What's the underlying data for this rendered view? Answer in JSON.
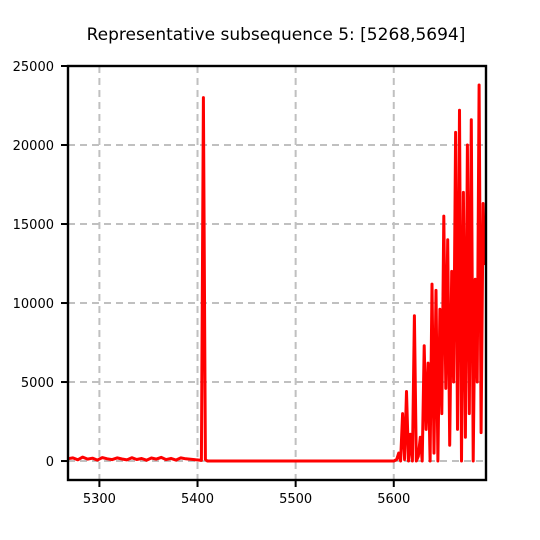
{
  "chart_data": {
    "type": "line",
    "title": "Representative subsequence 5: [5268,5694]",
    "xlabel": "",
    "ylabel": "",
    "xlim": [
      5268,
      5694
    ],
    "ylim": [
      -1200,
      25000
    ],
    "x_ticks": [
      5300,
      5400,
      5500,
      5600
    ],
    "x_tick_labels": [
      "5300",
      "5400",
      "5500",
      "5600"
    ],
    "y_ticks": [
      0,
      5000,
      10000,
      15000,
      20000,
      25000
    ],
    "y_tick_labels": [
      "0",
      "5000",
      "10000",
      "15000",
      "20000",
      "25000"
    ],
    "grid": true,
    "legend": "none",
    "series": [
      {
        "color": "#ff0000",
        "x": [
          5268,
          5273,
          5278,
          5283,
          5288,
          5293,
          5298,
          5303,
          5308,
          5313,
          5318,
          5323,
          5328,
          5333,
          5338,
          5343,
          5348,
          5353,
          5358,
          5363,
          5368,
          5373,
          5378,
          5383,
          5388,
          5393,
          5398,
          5402,
          5404,
          5406,
          5408,
          5410,
          5450,
          5500,
          5550,
          5600,
          5603,
          5605,
          5607,
          5609,
          5611,
          5613,
          5615,
          5617,
          5619,
          5621,
          5623,
          5625,
          5627,
          5629,
          5631,
          5633,
          5635,
          5637,
          5639,
          5641,
          5643,
          5645,
          5647,
          5649,
          5651,
          5653,
          5655,
          5657,
          5659,
          5661,
          5663,
          5665,
          5667,
          5669,
          5671,
          5673,
          5675,
          5677,
          5679,
          5681,
          5683,
          5685,
          5687,
          5689,
          5691,
          5693
        ],
        "y": [
          150,
          200,
          80,
          250,
          120,
          180,
          60,
          220,
          140,
          90,
          200,
          130,
          70,
          210,
          100,
          160,
          50,
          190,
          120,
          230,
          90,
          170,
          60,
          200,
          140,
          110,
          80,
          60,
          40,
          23000,
          100,
          0,
          0,
          0,
          0,
          0,
          100,
          500,
          0,
          3000,
          100,
          4400,
          0,
          1700,
          0,
          9200,
          0,
          300,
          1500,
          0,
          7300,
          2000,
          6200,
          0,
          11200,
          500,
          10800,
          0,
          9600,
          3000,
          15500,
          4600,
          14000,
          1000,
          12000,
          5000,
          20800,
          2000,
          22200,
          0,
          17000,
          1500,
          20000,
          3000,
          21600,
          0,
          11500,
          5000,
          23800,
          1800,
          16300,
          12400
        ]
      }
    ]
  }
}
